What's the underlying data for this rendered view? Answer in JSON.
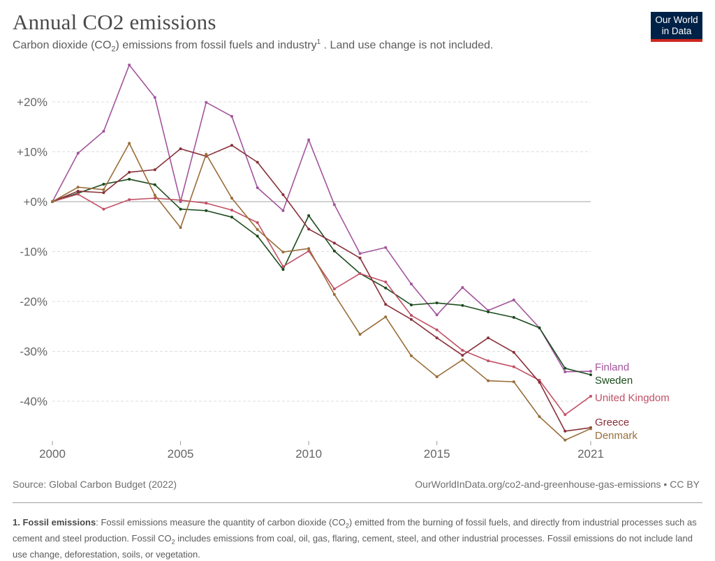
{
  "header": {
    "title": "Annual CO2 emissions",
    "subtitle_pre": "Carbon dioxide (CO",
    "subtitle_sub": "2",
    "subtitle_mid": ") emissions from fossil fuels and industry",
    "subtitle_sup": "1",
    "subtitle_post": " . Land use change is not included.",
    "logo_line1": "Our World",
    "logo_line2": "in Data"
  },
  "footer": {
    "source": "Source: Global Carbon Budget (2022)",
    "url": "OurWorldInData.org/co2-and-greenhouse-gas-emissions • CC BY",
    "note_label": "1. Fossil emissions",
    "note_part1": ": Fossil emissions measure the quantity of carbon dioxide (CO",
    "note_sub1": "2",
    "note_part2": ") emitted from the burning of fossil fuels, and directly from industrial processes such as cement and steel production. Fossil CO",
    "note_sub2": "2",
    "note_part3": " includes emissions from coal, oil, gas, flaring, cement, steel, and other industrial processes. Fossil emissions do not include land use change, deforestation, soils, or vegetation."
  },
  "chart_data": {
    "type": "line",
    "title": "Annual CO2 emissions",
    "subtitle": "Carbon dioxide (CO2) emissions from fossil fuels and industry. Land use change is not included.",
    "xlabel": "",
    "ylabel": "",
    "x": [
      2000,
      2001,
      2002,
      2003,
      2004,
      2005,
      2006,
      2007,
      2008,
      2009,
      2010,
      2011,
      2012,
      2013,
      2014,
      2015,
      2016,
      2017,
      2018,
      2019,
      2020,
      2021
    ],
    "xticks": [
      2000,
      2005,
      2010,
      2015,
      2021
    ],
    "xlim": [
      2000,
      2021
    ],
    "yticks": [
      20,
      10,
      0,
      -10,
      -20,
      -30,
      -40
    ],
    "ytick_labels": [
      "+20%",
      "+10%",
      "+0%",
      "-10%",
      "-20%",
      "-30%",
      "-40%"
    ],
    "ylim": [
      -48,
      28
    ],
    "grid": true,
    "legend": "right (line-end labels)",
    "series": [
      {
        "name": "Finland",
        "color": "#a2559c",
        "values": [
          0,
          9.7,
          14.1,
          27.4,
          20.9,
          0,
          19.9,
          17.1,
          2.8,
          -1.8,
          12.4,
          -0.6,
          -10.4,
          -9.2,
          -16.5,
          -22.7,
          -17.2,
          -21.8,
          -19.7,
          -25.3,
          -34.1,
          -34.0
        ]
      },
      {
        "name": "Sweden",
        "color": "#1c4b1d",
        "values": [
          0,
          1.7,
          3.5,
          4.5,
          3.4,
          -1.5,
          -1.8,
          -3.1,
          -6.9,
          -13.6,
          -2.8,
          -9.9,
          -14.4,
          -17.3,
          -20.7,
          -20.3,
          -20.8,
          -22.1,
          -23.2,
          -25.3,
          -33.4,
          -34.7
        ]
      },
      {
        "name": "United Kingdom",
        "color": "#c15065",
        "values": [
          0,
          1.5,
          -1.5,
          0.4,
          0.7,
          0.3,
          -0.3,
          -1.7,
          -4.2,
          -13.0,
          -9.9,
          -17.5,
          -14.4,
          -16.1,
          -22.8,
          -25.7,
          -29.8,
          -31.9,
          -33.1,
          -35.8,
          -42.7,
          -39.0
        ]
      },
      {
        "name": "Greece",
        "color": "#883039",
        "values": [
          0,
          2.1,
          1.8,
          5.9,
          6.4,
          10.6,
          9.1,
          11.3,
          7.9,
          1.4,
          -5.5,
          -8.3,
          -11.3,
          -20.6,
          -23.6,
          -27.3,
          -30.8,
          -27.3,
          -30.2,
          -36.2,
          -46.0,
          -45.3
        ]
      },
      {
        "name": "Denmark",
        "color": "#996d39",
        "values": [
          0,
          2.9,
          2.4,
          11.7,
          1.3,
          -5.2,
          9.5,
          0.7,
          -5.6,
          -10.1,
          -9.4,
          -18.6,
          -26.6,
          -23.1,
          -30.9,
          -35.1,
          -31.7,
          -35.9,
          -36.1,
          -43.1,
          -47.8,
          -45.5
        ]
      }
    ]
  }
}
